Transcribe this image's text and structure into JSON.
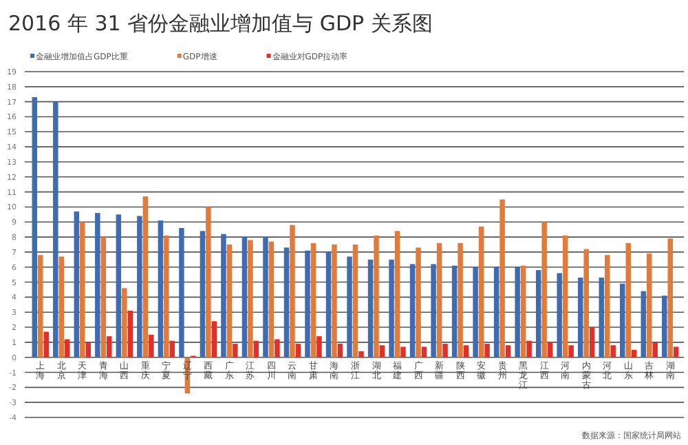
{
  "chart_data": {
    "type": "bar",
    "title": "2016 年 31 省份金融业增加值与 GDP 关系图",
    "categories": [
      "上海",
      "北京",
      "天津",
      "青海",
      "山西",
      "重庆",
      "宁夏",
      "辽宁",
      "西藏",
      "广东",
      "江苏",
      "四川",
      "云南",
      "甘肃",
      "海南",
      "浙江",
      "湖北",
      "福建",
      "广西",
      "新疆",
      "陕西",
      "安徽",
      "贵州",
      "黑龙江",
      "江西",
      "河南",
      "内蒙古",
      "河北",
      "山东",
      "吉林",
      "湖南"
    ],
    "series": [
      {
        "name": "金融业增加值占GDP比重",
        "color": "#3f6bb0",
        "values": [
          17.3,
          17.0,
          9.7,
          9.6,
          9.5,
          9.4,
          9.1,
          8.6,
          8.4,
          8.2,
          8.0,
          8.0,
          7.3,
          7.1,
          7.0,
          6.7,
          6.5,
          6.5,
          6.2,
          6.2,
          6.1,
          6.0,
          6.0,
          6.0,
          5.8,
          5.6,
          5.3,
          5.3,
          4.9,
          4.4,
          4.1
        ]
      },
      {
        "name": "GDP增速",
        "color": "#e07b3c",
        "values": [
          6.8,
          6.7,
          9.0,
          8.0,
          4.6,
          10.7,
          8.1,
          -2.4,
          10.0,
          7.5,
          7.8,
          7.7,
          8.8,
          7.6,
          7.5,
          7.5,
          8.1,
          8.4,
          7.3,
          7.6,
          7.6,
          8.7,
          10.5,
          6.1,
          9.0,
          8.1,
          7.2,
          6.8,
          7.6,
          6.9,
          7.9
        ]
      },
      {
        "name": "金融业对GDP拉动率",
        "color": "#e0302a",
        "values": [
          1.7,
          1.2,
          1.0,
          1.4,
          3.1,
          1.5,
          1.1,
          0.1,
          2.4,
          0.9,
          1.1,
          1.2,
          0.9,
          1.4,
          0.9,
          0.4,
          0.8,
          0.7,
          0.7,
          0.9,
          0.8,
          0.9,
          0.8,
          1.1,
          1.0,
          0.8,
          2.0,
          0.8,
          0.5,
          1.0,
          0.7
        ]
      }
    ],
    "ylim": [
      -4,
      19
    ],
    "yticks": [
      -4,
      -3,
      -2,
      -1,
      0,
      1,
      2,
      3,
      4,
      5,
      6,
      7,
      8,
      9,
      10,
      11,
      12,
      13,
      14,
      15,
      16,
      17,
      18,
      19
    ],
    "grid": "y",
    "legend": "top left",
    "annotations": [
      "数据来源：国家统计局网站"
    ]
  }
}
